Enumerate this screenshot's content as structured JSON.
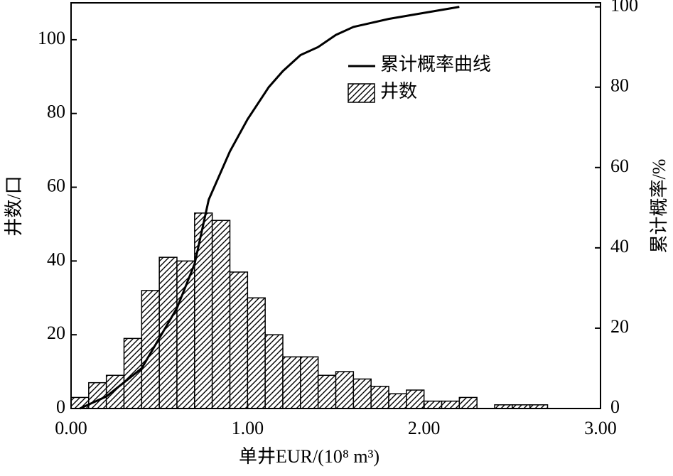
{
  "chart_data": {
    "type": "histogram",
    "xlabel": "单井EUR/(10⁸ m³)",
    "ylabel": "井数/口",
    "y2label": "累计概率/%",
    "bins": [
      0,
      0.1,
      0.2,
      0.3,
      0.4,
      0.5,
      0.6,
      0.7,
      0.8,
      0.9,
      1.0,
      1.1,
      1.2,
      1.3,
      1.4,
      1.5,
      1.6,
      1.7,
      1.8,
      1.9,
      2.0,
      2.1,
      2.2,
      2.3,
      2.4,
      2.5,
      2.6,
      2.7
    ],
    "series": [
      {
        "name": "井数",
        "color": "#000000",
        "values": [
          3,
          7,
          9,
          19,
          32,
          41,
          40,
          53,
          51,
          37,
          30,
          20,
          14,
          14,
          9,
          10,
          8,
          6,
          4,
          5,
          2,
          2,
          3,
          0,
          1,
          1,
          1
        ]
      },
      {
        "name": "累计概率曲线",
        "type": "line",
        "axis": "y2",
        "color": "#000000",
        "x": [
          0.05,
          0.2,
          0.4,
          0.6,
          0.7,
          0.78,
          0.9,
          1.0,
          1.12,
          1.2,
          1.3,
          1.4,
          1.5,
          1.6,
          1.8,
          2.0,
          2.2
        ],
        "values": [
          0,
          3,
          10,
          25,
          36,
          52,
          64,
          72,
          80,
          84,
          88,
          90,
          93,
          95,
          97,
          98.5,
          100
        ]
      }
    ],
    "xlim": [
      0,
      3
    ],
    "xticks": [
      {
        "value": 0,
        "label": "0.00"
      },
      {
        "value": 1,
        "label": "1.00"
      },
      {
        "value": 2,
        "label": "2.00"
      },
      {
        "value": 3,
        "label": "3.00"
      }
    ],
    "ylim": [
      0,
      110
    ],
    "yticks": [
      0,
      20,
      40,
      60,
      80,
      100
    ],
    "y2lim": [
      0,
      101
    ],
    "y2ticks": [
      0,
      20,
      40,
      60,
      80,
      100
    ],
    "grid": false,
    "legend": "upper right"
  }
}
